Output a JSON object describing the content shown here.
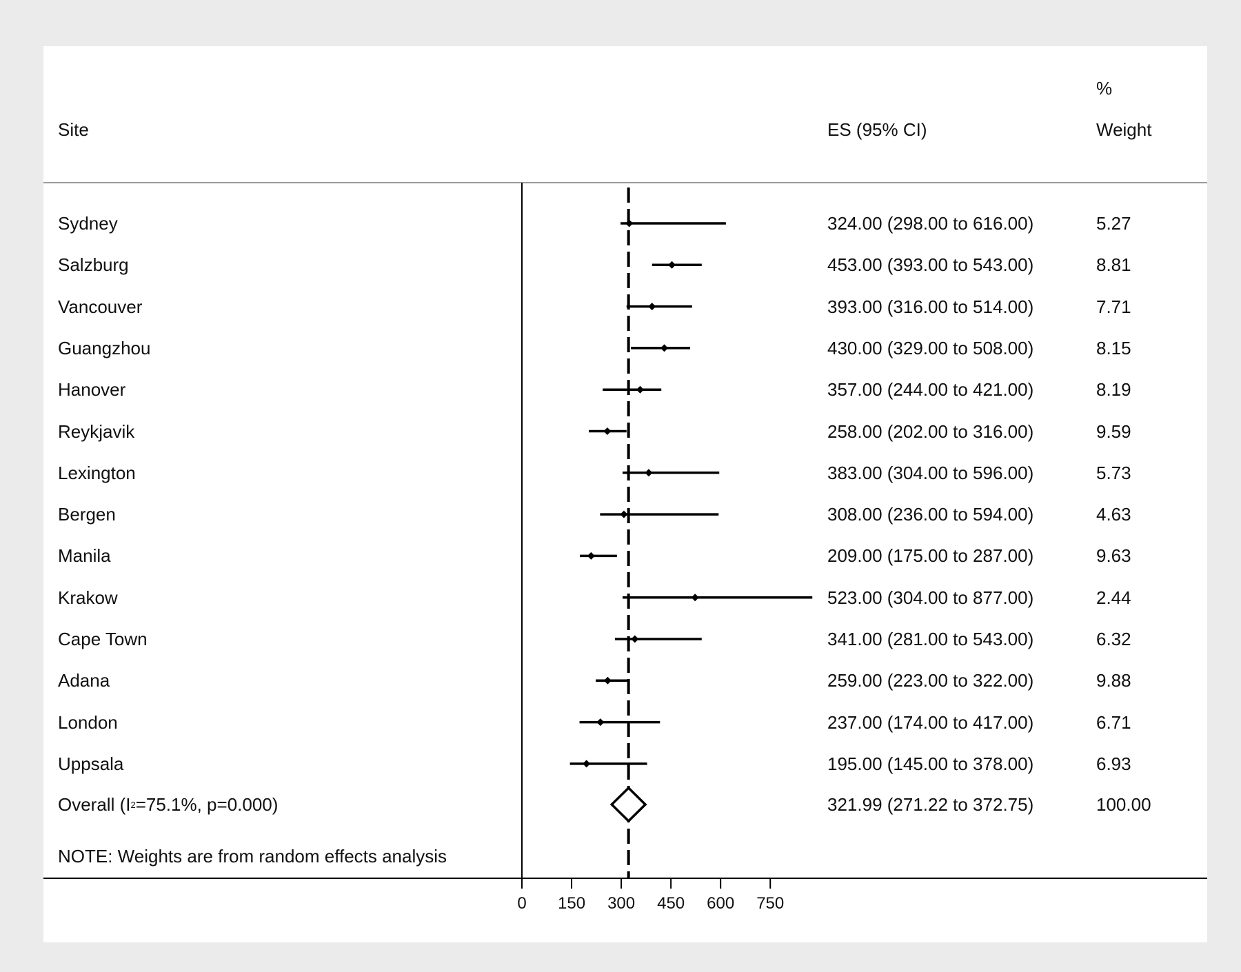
{
  "header": {
    "site_label": "Site",
    "es_label": "ES (95% CI)",
    "weight_label_line1": "%",
    "weight_label_line2": "Weight"
  },
  "overall": {
    "label_prefix": "Overall  (I",
    "label_sup": "2",
    "label_suffix": "=75.1%, p=0.000)"
  },
  "note": "NOTE: Weights are from random effects analysis",
  "chart_data": {
    "type": "forest",
    "x_ticks": [
      0,
      150,
      300,
      450,
      600,
      750
    ],
    "xlim": [
      0,
      877
    ],
    "reference_line": 321.99,
    "studies": [
      {
        "site": "Sydney",
        "es": 324.0,
        "lo": 298.0,
        "hi": 616.0,
        "es_text": "324.00 (298.00 to 616.00)",
        "weight": "5.27"
      },
      {
        "site": "Salzburg",
        "es": 453.0,
        "lo": 393.0,
        "hi": 543.0,
        "es_text": "453.00 (393.00 to 543.00)",
        "weight": "8.81"
      },
      {
        "site": "Vancouver",
        "es": 393.0,
        "lo": 316.0,
        "hi": 514.0,
        "es_text": "393.00 (316.00 to 514.00)",
        "weight": "7.71"
      },
      {
        "site": "Guangzhou",
        "es": 430.0,
        "lo": 329.0,
        "hi": 508.0,
        "es_text": "430.00 (329.00 to 508.00)",
        "weight": "8.15"
      },
      {
        "site": "Hanover",
        "es": 357.0,
        "lo": 244.0,
        "hi": 421.0,
        "es_text": "357.00 (244.00 to 421.00)",
        "weight": "8.19"
      },
      {
        "site": "Reykjavik",
        "es": 258.0,
        "lo": 202.0,
        "hi": 316.0,
        "es_text": "258.00 (202.00 to 316.00)",
        "weight": "9.59"
      },
      {
        "site": "Lexington",
        "es": 383.0,
        "lo": 304.0,
        "hi": 596.0,
        "es_text": "383.00 (304.00 to 596.00)",
        "weight": "5.73"
      },
      {
        "site": "Bergen",
        "es": 308.0,
        "lo": 236.0,
        "hi": 594.0,
        "es_text": "308.00 (236.00 to 594.00)",
        "weight": "4.63"
      },
      {
        "site": "Manila",
        "es": 209.0,
        "lo": 175.0,
        "hi": 287.0,
        "es_text": "209.00 (175.00 to 287.00)",
        "weight": "9.63"
      },
      {
        "site": "Krakow",
        "es": 523.0,
        "lo": 304.0,
        "hi": 877.0,
        "es_text": "523.00 (304.00 to 877.00)",
        "weight": "2.44"
      },
      {
        "site": "Cape Town",
        "es": 341.0,
        "lo": 281.0,
        "hi": 543.0,
        "es_text": "341.00 (281.00 to 543.00)",
        "weight": "6.32"
      },
      {
        "site": "Adana",
        "es": 259.0,
        "lo": 223.0,
        "hi": 322.0,
        "es_text": "259.00 (223.00 to 322.00)",
        "weight": "9.88"
      },
      {
        "site": "London",
        "es": 237.0,
        "lo": 174.0,
        "hi": 417.0,
        "es_text": "237.00 (174.00 to 417.00)",
        "weight": "6.71"
      },
      {
        "site": "Uppsala",
        "es": 195.0,
        "lo": 145.0,
        "hi": 378.0,
        "es_text": "195.00 (145.00 to 378.00)",
        "weight": "6.93"
      }
    ],
    "overall": {
      "es": 321.99,
      "lo": 271.22,
      "hi": 372.75,
      "es_text": "321.99 (271.22 to 372.75)",
      "weight": "100.00"
    }
  }
}
